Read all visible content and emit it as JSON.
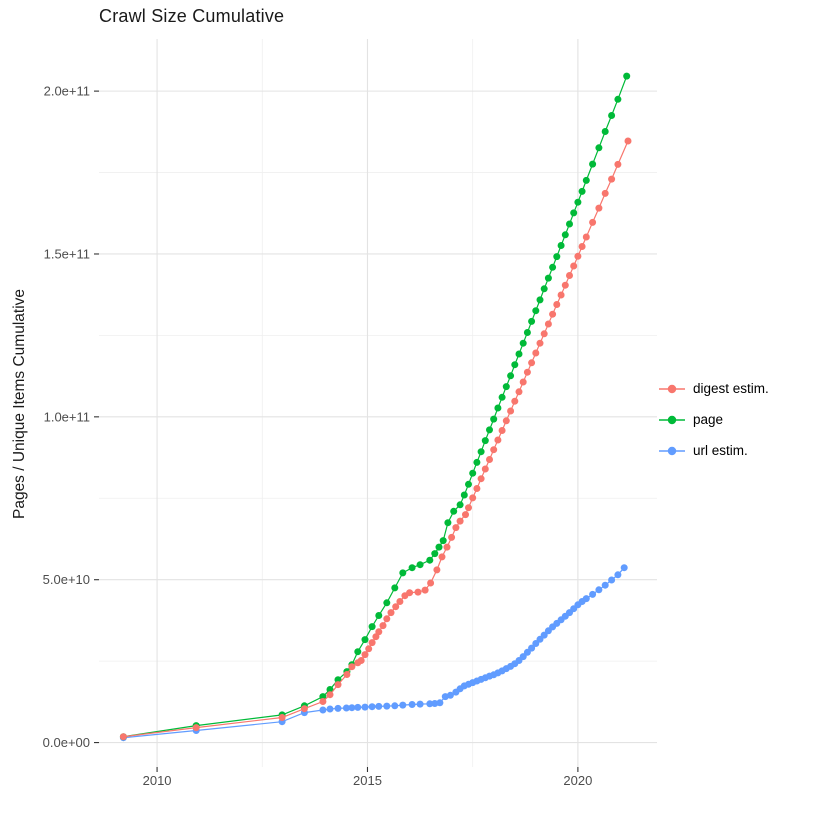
{
  "chart_data": {
    "type": "scatter",
    "title": "Crawl Size Cumulative",
    "xlabel": "",
    "ylabel": "Pages / Unique Items Cumulative",
    "y_unit_note": "values in units of 1e10 pages",
    "grid": true,
    "legend_position": "right",
    "x_axis": {
      "range": [
        2008.62,
        2021.88
      ],
      "ticks": [
        {
          "value": 2010,
          "label": "2010"
        },
        {
          "value": 2015,
          "label": "2015"
        },
        {
          "value": 2020,
          "label": "2020"
        }
      ],
      "minor": [
        2012.5,
        2017.5
      ]
    },
    "y_axis": {
      "range": [
        -0.75,
        21.6
      ],
      "ticks": [
        {
          "value": 0,
          "label": "0.0e+00"
        },
        {
          "value": 5,
          "label": "5.0e+10"
        },
        {
          "value": 10,
          "label": "1.0e+11"
        },
        {
          "value": 15,
          "label": "1.5e+11"
        },
        {
          "value": 20,
          "label": "2.0e+11"
        }
      ],
      "minor": [
        2.5,
        7.5,
        12.5,
        17.5
      ]
    },
    "series": [
      {
        "name": "digest estim.",
        "color": "#F8766D",
        "points": [
          [
            2009.2,
            0.18
          ],
          [
            2010.93,
            0.46
          ],
          [
            2012.97,
            0.77
          ],
          [
            2013.5,
            1.04
          ],
          [
            2013.94,
            1.26
          ],
          [
            2014.11,
            1.47
          ],
          [
            2014.3,
            1.78
          ],
          [
            2014.51,
            2.09
          ],
          [
            2014.63,
            2.33
          ],
          [
            2014.77,
            2.45
          ],
          [
            2014.85,
            2.52
          ],
          [
            2014.94,
            2.7
          ],
          [
            2015.03,
            2.88
          ],
          [
            2015.11,
            3.07
          ],
          [
            2015.2,
            3.25
          ],
          [
            2015.27,
            3.4
          ],
          [
            2015.37,
            3.59
          ],
          [
            2015.46,
            3.8
          ],
          [
            2015.56,
            3.99
          ],
          [
            2015.67,
            4.17
          ],
          [
            2015.77,
            4.33
          ],
          [
            2015.89,
            4.51
          ],
          [
            2016.0,
            4.6
          ],
          [
            2016.2,
            4.62
          ],
          [
            2016.37,
            4.68
          ],
          [
            2016.5,
            4.9
          ],
          [
            2016.65,
            5.3
          ],
          [
            2016.77,
            5.7
          ],
          [
            2016.89,
            6.0
          ],
          [
            2017.0,
            6.3
          ],
          [
            2017.1,
            6.6
          ],
          [
            2017.2,
            6.8
          ],
          [
            2017.33,
            7.0
          ],
          [
            2017.4,
            7.21
          ],
          [
            2017.5,
            7.51
          ],
          [
            2017.6,
            7.8
          ],
          [
            2017.7,
            8.1
          ],
          [
            2017.8,
            8.4
          ],
          [
            2017.9,
            8.69
          ],
          [
            2018.0,
            8.99
          ],
          [
            2018.1,
            9.29
          ],
          [
            2018.2,
            9.58
          ],
          [
            2018.3,
            9.88
          ],
          [
            2018.4,
            10.18
          ],
          [
            2018.5,
            10.48
          ],
          [
            2018.6,
            10.77
          ],
          [
            2018.7,
            11.07
          ],
          [
            2018.8,
            11.37
          ],
          [
            2018.9,
            11.66
          ],
          [
            2019.0,
            11.96
          ],
          [
            2019.1,
            12.26
          ],
          [
            2019.2,
            12.55
          ],
          [
            2019.3,
            12.85
          ],
          [
            2019.4,
            13.15
          ],
          [
            2019.5,
            13.45
          ],
          [
            2019.6,
            13.74
          ],
          [
            2019.7,
            14.04
          ],
          [
            2019.8,
            14.34
          ],
          [
            2019.9,
            14.63
          ],
          [
            2020.0,
            14.93
          ],
          [
            2020.1,
            15.23
          ],
          [
            2020.2,
            15.52
          ],
          [
            2020.35,
            15.97
          ],
          [
            2020.5,
            16.41
          ],
          [
            2020.65,
            16.86
          ],
          [
            2020.8,
            17.3
          ],
          [
            2020.95,
            17.75
          ],
          [
            2021.19,
            18.47
          ]
        ]
      },
      {
        "name": "page",
        "color": "#00BA38",
        "points": [
          [
            2009.2,
            0.18
          ],
          [
            2010.93,
            0.52
          ],
          [
            2012.97,
            0.85
          ],
          [
            2013.5,
            1.13
          ],
          [
            2013.94,
            1.41
          ],
          [
            2014.11,
            1.63
          ],
          [
            2014.3,
            1.93
          ],
          [
            2014.51,
            2.18
          ],
          [
            2014.63,
            2.39
          ],
          [
            2014.77,
            2.79
          ],
          [
            2014.94,
            3.16
          ],
          [
            2015.11,
            3.56
          ],
          [
            2015.27,
            3.9
          ],
          [
            2015.46,
            4.29
          ],
          [
            2015.65,
            4.75
          ],
          [
            2015.84,
            5.21
          ],
          [
            2016.06,
            5.37
          ],
          [
            2016.25,
            5.46
          ],
          [
            2016.48,
            5.6
          ],
          [
            2016.6,
            5.8
          ],
          [
            2016.7,
            6.0
          ],
          [
            2016.8,
            6.2
          ],
          [
            2016.91,
            6.75
          ],
          [
            2017.05,
            7.1
          ],
          [
            2017.2,
            7.3
          ],
          [
            2017.3,
            7.6
          ],
          [
            2017.4,
            7.93
          ],
          [
            2017.5,
            8.27
          ],
          [
            2017.6,
            8.6
          ],
          [
            2017.7,
            8.93
          ],
          [
            2017.8,
            9.27
          ],
          [
            2017.9,
            9.6
          ],
          [
            2018.0,
            9.93
          ],
          [
            2018.1,
            10.27
          ],
          [
            2018.2,
            10.6
          ],
          [
            2018.3,
            10.93
          ],
          [
            2018.4,
            11.26
          ],
          [
            2018.5,
            11.6
          ],
          [
            2018.6,
            11.93
          ],
          [
            2018.7,
            12.26
          ],
          [
            2018.8,
            12.59
          ],
          [
            2018.9,
            12.93
          ],
          [
            2019.0,
            13.26
          ],
          [
            2019.1,
            13.59
          ],
          [
            2019.2,
            13.93
          ],
          [
            2019.3,
            14.26
          ],
          [
            2019.4,
            14.59
          ],
          [
            2019.5,
            14.92
          ],
          [
            2019.6,
            15.26
          ],
          [
            2019.7,
            15.59
          ],
          [
            2019.8,
            15.92
          ],
          [
            2019.9,
            16.26
          ],
          [
            2020.0,
            16.59
          ],
          [
            2020.1,
            16.92
          ],
          [
            2020.2,
            17.26
          ],
          [
            2020.35,
            17.76
          ],
          [
            2020.5,
            18.26
          ],
          [
            2020.65,
            18.76
          ],
          [
            2020.8,
            19.25
          ],
          [
            2020.95,
            19.75
          ],
          [
            2021.16,
            20.46
          ]
        ]
      },
      {
        "name": "url estim.",
        "color": "#619CFF",
        "points": [
          [
            2009.2,
            0.15
          ],
          [
            2010.93,
            0.37
          ],
          [
            2012.97,
            0.64
          ],
          [
            2013.5,
            0.92
          ],
          [
            2013.94,
            1.0
          ],
          [
            2014.11,
            1.03
          ],
          [
            2014.3,
            1.05
          ],
          [
            2014.5,
            1.06
          ],
          [
            2014.63,
            1.07
          ],
          [
            2014.77,
            1.08
          ],
          [
            2014.94,
            1.09
          ],
          [
            2015.11,
            1.1
          ],
          [
            2015.27,
            1.11
          ],
          [
            2015.46,
            1.12
          ],
          [
            2015.65,
            1.13
          ],
          [
            2015.84,
            1.15
          ],
          [
            2016.06,
            1.17
          ],
          [
            2016.25,
            1.18
          ],
          [
            2016.48,
            1.19
          ],
          [
            2016.6,
            1.2
          ],
          [
            2016.72,
            1.22
          ],
          [
            2016.85,
            1.41
          ],
          [
            2016.97,
            1.45
          ],
          [
            2017.1,
            1.55
          ],
          [
            2017.2,
            1.65
          ],
          [
            2017.3,
            1.74
          ],
          [
            2017.4,
            1.79
          ],
          [
            2017.5,
            1.84
          ],
          [
            2017.6,
            1.89
          ],
          [
            2017.7,
            1.94
          ],
          [
            2017.8,
            1.99
          ],
          [
            2017.9,
            2.04
          ],
          [
            2018.0,
            2.08
          ],
          [
            2018.1,
            2.14
          ],
          [
            2018.2,
            2.2
          ],
          [
            2018.3,
            2.27
          ],
          [
            2018.4,
            2.34
          ],
          [
            2018.5,
            2.42
          ],
          [
            2018.6,
            2.52
          ],
          [
            2018.7,
            2.64
          ],
          [
            2018.8,
            2.77
          ],
          [
            2018.9,
            2.9
          ],
          [
            2019.0,
            3.04
          ],
          [
            2019.1,
            3.17
          ],
          [
            2019.2,
            3.3
          ],
          [
            2019.3,
            3.43
          ],
          [
            2019.4,
            3.55
          ],
          [
            2019.5,
            3.66
          ],
          [
            2019.6,
            3.77
          ],
          [
            2019.7,
            3.88
          ],
          [
            2019.8,
            3.99
          ],
          [
            2019.9,
            4.11
          ],
          [
            2020.0,
            4.23
          ],
          [
            2020.1,
            4.33
          ],
          [
            2020.2,
            4.42
          ],
          [
            2020.35,
            4.55
          ],
          [
            2020.5,
            4.69
          ],
          [
            2020.65,
            4.83
          ],
          [
            2020.8,
            4.99
          ],
          [
            2020.95,
            5.15
          ],
          [
            2021.1,
            5.37
          ]
        ]
      }
    ]
  }
}
